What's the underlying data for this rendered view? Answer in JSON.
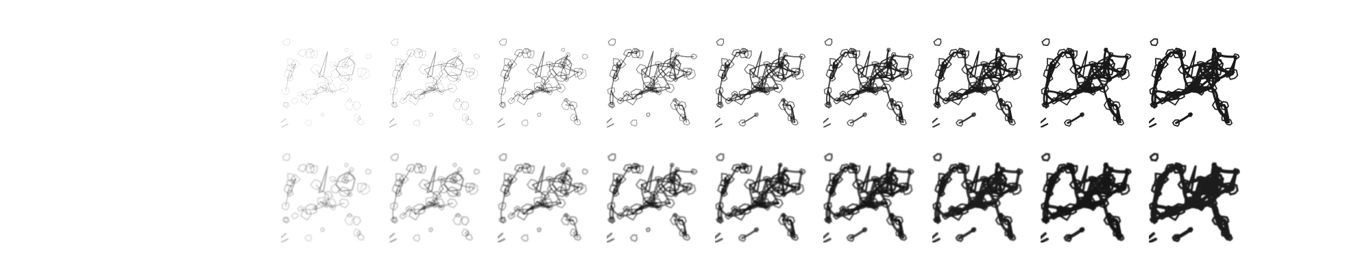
{
  "figure": {
    "rows": [
      {
        "id": "sharp-edges",
        "style": "sharp",
        "stroke_color": "#1a1a1a",
        "frames": [
          {
            "density": 0.12
          },
          {
            "density": 0.22
          },
          {
            "density": 0.34
          },
          {
            "density": 0.46
          },
          {
            "density": 0.58
          },
          {
            "density": 0.68
          },
          {
            "density": 0.78
          },
          {
            "density": 0.88
          },
          {
            "density": 0.97
          }
        ]
      },
      {
        "id": "blurred-edges",
        "style": "blurred",
        "stroke_color": "#1a1a1a",
        "frames": [
          {
            "density": 0.12
          },
          {
            "density": 0.22
          },
          {
            "density": 0.34
          },
          {
            "density": 0.46
          },
          {
            "density": 0.58
          },
          {
            "density": 0.68
          },
          {
            "density": 0.78
          },
          {
            "density": 0.88
          },
          {
            "density": 0.97
          }
        ]
      }
    ]
  }
}
